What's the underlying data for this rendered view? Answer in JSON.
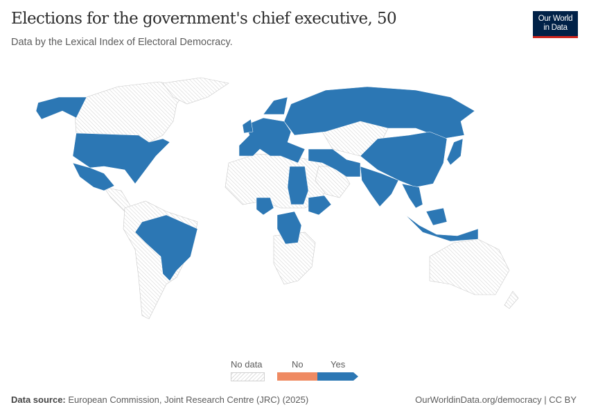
{
  "header": {
    "title": "Elections for the government's chief executive, 50",
    "subtitle": "Data by the Lexical Index of Electoral Democracy.",
    "logo_line1": "Our World",
    "logo_line2": "in Data"
  },
  "colors": {
    "yes": "#2c77b4",
    "no": "#ef8a62",
    "no_data": "#dddddd"
  },
  "chart_data": {
    "type": "map",
    "title": "Elections for the government's chief executive, 50",
    "legend": {
      "no_data": "No data",
      "categories": [
        "No",
        "Yes"
      ]
    },
    "regions_with_yes": [
      "Alaska/USA",
      "United States",
      "Mexico",
      "Brazil",
      "Western Europe",
      "Russia",
      "Turkey",
      "Iran",
      "Afghanistan/Pakistan",
      "India",
      "China",
      "Mongolia",
      "Japan",
      "Korea",
      "Southeast Asia",
      "Indonesia",
      "Nigeria",
      "Sudan",
      "Ethiopia",
      "DR Congo",
      "Uruguay"
    ],
    "regions_no_data": [
      "Canada",
      "Greenland",
      "Central America",
      "South America (rest)",
      "North Africa",
      "Southern Africa",
      "Arabia",
      "Central Asia",
      "Australia",
      "New Zealand"
    ]
  },
  "footer": {
    "source_label": "Data source:",
    "source_text": " European Commission, Joint Research Centre (JRC) (2025)",
    "url": "OurWorldinData.org/democracy | CC BY"
  }
}
